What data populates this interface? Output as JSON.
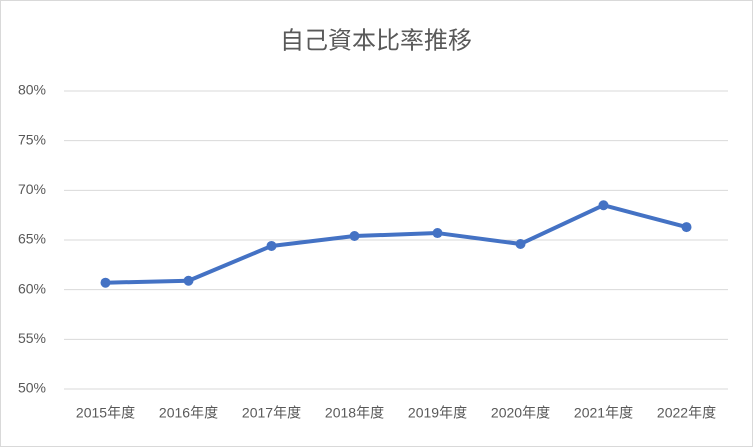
{
  "chart_data": {
    "type": "line",
    "title": "自己資本比率推移",
    "categories": [
      "2015年度",
      "2016年度",
      "2017年度",
      "2018年度",
      "2019年度",
      "2020年度",
      "2021年度",
      "2022年度"
    ],
    "series": [
      {
        "name": "自己資本比率",
        "color": "#4472c4",
        "values": [
          60.7,
          60.9,
          64.4,
          65.4,
          65.7,
          64.6,
          68.5,
          66.3
        ]
      }
    ],
    "ylim": [
      50,
      80
    ],
    "yticks": [
      {
        "value": 50,
        "label": "50%"
      },
      {
        "value": 55,
        "label": "55%"
      },
      {
        "value": 60,
        "label": "60%"
      },
      {
        "value": 65,
        "label": "65%"
      },
      {
        "value": 70,
        "label": "70%"
      },
      {
        "value": 75,
        "label": "75%"
      },
      {
        "value": 80,
        "label": "80%"
      }
    ],
    "grid": true
  }
}
